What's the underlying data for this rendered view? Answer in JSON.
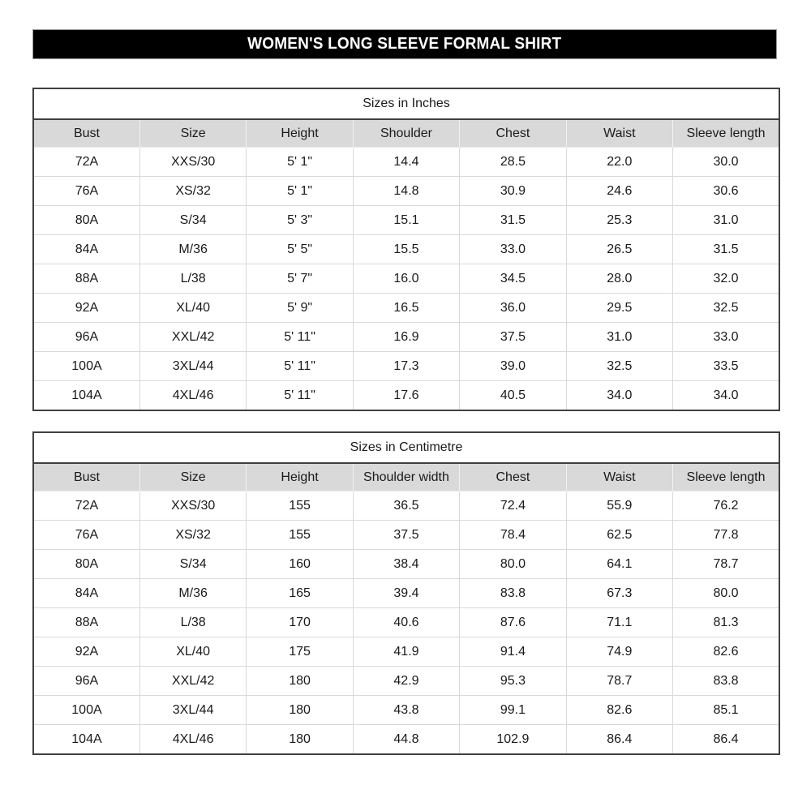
{
  "title": "WOMEN'S LONG SLEEVE FORMAL SHIRT",
  "colors": {
    "banner_bg": "#000000",
    "banner_text": "#ffffff",
    "header_row_bg": "#d9d9d9",
    "table_border": "#404040",
    "grid_line": "#d9d9d9"
  },
  "tables": [
    {
      "caption": "Sizes in Inches",
      "columns": [
        "Bust",
        "Size",
        "Height",
        "Shoulder",
        "Chest",
        "Waist",
        "Sleeve length"
      ],
      "rows": [
        [
          "72A",
          "XXS/30",
          "5' 1\"",
          "14.4",
          "28.5",
          "22.0",
          "30.0"
        ],
        [
          "76A",
          "XS/32",
          "5' 1\"",
          "14.8",
          "30.9",
          "24.6",
          "30.6"
        ],
        [
          "80A",
          "S/34",
          "5' 3\"",
          "15.1",
          "31.5",
          "25.3",
          "31.0"
        ],
        [
          "84A",
          "M/36",
          "5' 5\"",
          "15.5",
          "33.0",
          "26.5",
          "31.5"
        ],
        [
          "88A",
          "L/38",
          "5' 7\"",
          "16.0",
          "34.5",
          "28.0",
          "32.0"
        ],
        [
          "92A",
          "XL/40",
          "5' 9\"",
          "16.5",
          "36.0",
          "29.5",
          "32.5"
        ],
        [
          "96A",
          "XXL/42",
          "5' 11\"",
          "16.9",
          "37.5",
          "31.0",
          "33.0"
        ],
        [
          "100A",
          "3XL/44",
          "5' 11\"",
          "17.3",
          "39.0",
          "32.5",
          "33.5"
        ],
        [
          "104A",
          "4XL/46",
          "5' 11\"",
          "17.6",
          "40.5",
          "34.0",
          "34.0"
        ]
      ]
    },
    {
      "caption": "Sizes in Centimetre",
      "columns": [
        "Bust",
        "Size",
        "Height",
        "Shoulder width",
        "Chest",
        "Waist",
        "Sleeve length"
      ],
      "rows": [
        [
          "72A",
          "XXS/30",
          "155",
          "36.5",
          "72.4",
          "55.9",
          "76.2"
        ],
        [
          "76A",
          "XS/32",
          "155",
          "37.5",
          "78.4",
          "62.5",
          "77.8"
        ],
        [
          "80A",
          "S/34",
          "160",
          "38.4",
          "80.0",
          "64.1",
          "78.7"
        ],
        [
          "84A",
          "M/36",
          "165",
          "39.4",
          "83.8",
          "67.3",
          "80.0"
        ],
        [
          "88A",
          "L/38",
          "170",
          "40.6",
          "87.6",
          "71.1",
          "81.3"
        ],
        [
          "92A",
          "XL/40",
          "175",
          "41.9",
          "91.4",
          "74.9",
          "82.6"
        ],
        [
          "96A",
          "XXL/42",
          "180",
          "42.9",
          "95.3",
          "78.7",
          "83.8"
        ],
        [
          "100A",
          "3XL/44",
          "180",
          "43.8",
          "99.1",
          "82.6",
          "85.1"
        ],
        [
          "104A",
          "4XL/46",
          "180",
          "44.8",
          "102.9",
          "86.4",
          "86.4"
        ]
      ]
    }
  ]
}
